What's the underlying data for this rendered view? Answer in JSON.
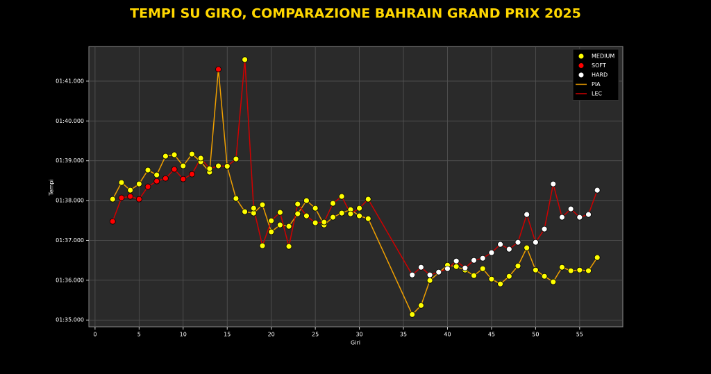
{
  "chart_data": {
    "type": "line",
    "title": "TEMPI SU GIRO, COMPARAZIONE BAHRAIN GRAND PRIX 2025",
    "x_label": "Giri",
    "y_label": "Tempi",
    "xlim": [
      -0.7,
      59.9
    ],
    "ylim": [
      94.83,
      101.87
    ],
    "xticks": [
      0,
      5,
      10,
      15,
      20,
      25,
      30,
      35,
      40,
      45,
      50,
      55
    ],
    "yticks": [
      {
        "value": 95,
        "label": "01:35.000"
      },
      {
        "value": 96,
        "label": "01:36.000"
      },
      {
        "value": 97,
        "label": "01:37.000"
      },
      {
        "value": 98,
        "label": "01:38.000"
      },
      {
        "value": 99,
        "label": "01:39.000"
      },
      {
        "value": 100,
        "label": "01:40.000"
      },
      {
        "value": 101,
        "label": "01:41.000"
      }
    ],
    "grid": true,
    "legend": "upper right",
    "compound_legend": [
      {
        "name": "MEDIUM",
        "color": "#ffff00"
      },
      {
        "name": "SOFT",
        "color": "#ff0000"
      },
      {
        "name": "HARD",
        "color": "#ffffff"
      }
    ],
    "series": [
      {
        "name": "PIA",
        "color": "#f0a000",
        "x": [
          2,
          3,
          4,
          5,
          6,
          7,
          8,
          9,
          10,
          11,
          12,
          13,
          14,
          15,
          16,
          17,
          18,
          19,
          20,
          21,
          22,
          23,
          24,
          25,
          26,
          27,
          28,
          29,
          30,
          31,
          36,
          37,
          38,
          40,
          41,
          42,
          43,
          44,
          45,
          46,
          47,
          48,
          49,
          50,
          51,
          52,
          53,
          54,
          55,
          56,
          57
        ],
        "values": [
          98.035,
          98.453,
          98.261,
          98.418,
          98.767,
          98.645,
          99.116,
          99.151,
          98.872,
          99.168,
          98.977,
          98.715,
          101.297,
          98.855,
          98.052,
          97.721,
          97.686,
          97.895,
          97.215,
          97.389,
          97.354,
          97.668,
          98.0,
          97.808,
          97.389,
          97.581,
          97.686,
          97.773,
          97.616,
          97.546,
          95.139,
          95.366,
          95.994,
          96.378,
          96.343,
          96.256,
          96.116,
          96.29,
          96.029,
          95.907,
          96.099,
          96.36,
          96.814,
          96.256,
          96.099,
          95.959,
          96.325,
          96.238,
          96.256,
          96.238,
          96.57
        ],
        "compounds": [
          "MEDIUM",
          "MEDIUM",
          "MEDIUM",
          "MEDIUM",
          "MEDIUM",
          "MEDIUM",
          "MEDIUM",
          "MEDIUM",
          "MEDIUM",
          "MEDIUM",
          "MEDIUM",
          "MEDIUM",
          "SOFT",
          "MEDIUM",
          "MEDIUM",
          "MEDIUM",
          "MEDIUM",
          "MEDIUM",
          "MEDIUM",
          "MEDIUM",
          "MEDIUM",
          "MEDIUM",
          "MEDIUM",
          "MEDIUM",
          "MEDIUM",
          "MEDIUM",
          "MEDIUM",
          "MEDIUM",
          "MEDIUM",
          "MEDIUM",
          "MEDIUM",
          "MEDIUM",
          "MEDIUM",
          "MEDIUM",
          "MEDIUM",
          "MEDIUM",
          "MEDIUM",
          "MEDIUM",
          "MEDIUM",
          "MEDIUM",
          "MEDIUM",
          "MEDIUM",
          "MEDIUM",
          "MEDIUM",
          "MEDIUM",
          "MEDIUM",
          "MEDIUM",
          "MEDIUM",
          "MEDIUM",
          "MEDIUM",
          "MEDIUM"
        ]
      },
      {
        "name": "LEC",
        "color": "#d00000",
        "x": [
          2,
          3,
          4,
          5,
          6,
          7,
          8,
          9,
          10,
          11,
          12,
          13,
          14,
          15,
          16,
          17,
          18,
          19,
          20,
          21,
          22,
          23,
          24,
          25,
          26,
          27,
          28,
          29,
          30,
          31,
          36,
          37,
          38,
          39,
          40,
          41,
          42,
          43,
          44,
          45,
          46,
          47,
          48,
          49,
          50,
          51,
          52,
          53,
          54,
          55,
          56,
          57
        ],
        "values": [
          97.477,
          98.07,
          98.104,
          98.035,
          98.349,
          98.488,
          98.558,
          98.785,
          98.541,
          98.663,
          99.064,
          98.802,
          98.871,
          98.862,
          99.046,
          101.541,
          97.808,
          96.866,
          97.494,
          97.703,
          96.849,
          97.913,
          97.616,
          97.442,
          97.459,
          97.93,
          98.104,
          97.668,
          97.808,
          98.035,
          96.133,
          96.325,
          96.133,
          96.203,
          96.29,
          96.482,
          96.308,
          96.5,
          96.552,
          96.692,
          96.901,
          96.779,
          96.953,
          97.651,
          96.953,
          97.285,
          98.418,
          97.581,
          97.791,
          97.581,
          97.651,
          98.261
        ],
        "compounds": [
          "SOFT",
          "SOFT",
          "SOFT",
          "SOFT",
          "SOFT",
          "SOFT",
          "SOFT",
          "SOFT",
          "SOFT",
          "SOFT",
          "MEDIUM",
          "MEDIUM",
          "MEDIUM",
          "MEDIUM",
          "MEDIUM",
          "MEDIUM",
          "MEDIUM",
          "MEDIUM",
          "MEDIUM",
          "MEDIUM",
          "MEDIUM",
          "MEDIUM",
          "MEDIUM",
          "MEDIUM",
          "MEDIUM",
          "MEDIUM",
          "MEDIUM",
          "MEDIUM",
          "MEDIUM",
          "MEDIUM",
          "HARD",
          "HARD",
          "HARD",
          "HARD",
          "HARD",
          "HARD",
          "HARD",
          "HARD",
          "HARD",
          "HARD",
          "HARD",
          "HARD",
          "HARD",
          "HARD",
          "HARD",
          "HARD",
          "HARD",
          "HARD",
          "HARD",
          "HARD",
          "HARD",
          "HARD"
        ]
      }
    ]
  }
}
